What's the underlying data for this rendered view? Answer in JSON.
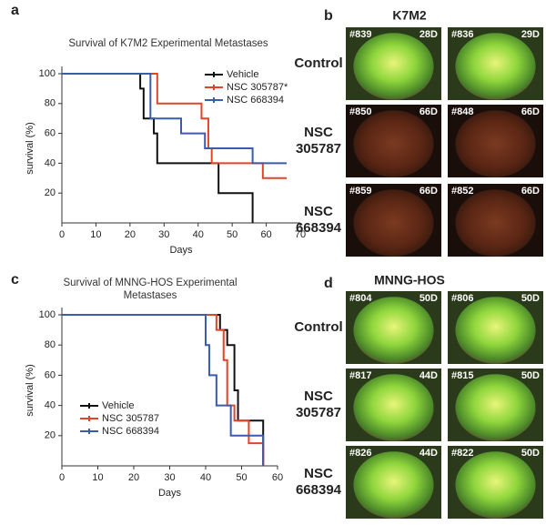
{
  "chart_data": [
    {
      "type": "step",
      "panel_label": "a",
      "title": [
        "Survival of K7M2 Experimental Metastases"
      ],
      "x_label": "Days",
      "y_label": "survival (%)",
      "xlim": [
        0,
        70
      ],
      "xticks": [
        0,
        10,
        20,
        30,
        40,
        50,
        60,
        70
      ],
      "ylim": [
        0,
        100
      ],
      "yticks": [
        20,
        40,
        60,
        80,
        100
      ],
      "series": [
        {
          "name": "Vehicle",
          "color": "#111111",
          "x": [
            0,
            23,
            24,
            27,
            28,
            46,
            56
          ],
          "values": [
            100,
            90,
            70,
            60,
            40,
            20,
            0
          ]
        },
        {
          "name": "NSC 305787*",
          "color": "#e0452a",
          "x": [
            0,
            28,
            41,
            43,
            44,
            59,
            66
          ],
          "values": [
            100,
            80,
            70,
            50,
            40,
            30,
            30
          ]
        },
        {
          "name": "NSC 668394",
          "color": "#3b5bab",
          "x": [
            0,
            26,
            35,
            42,
            56,
            66
          ],
          "values": [
            100,
            70,
            60,
            50,
            40,
            40
          ]
        }
      ]
    },
    {
      "type": "step",
      "panel_label": "c",
      "title": [
        "Survival of MNNG-HOS Experimental",
        "Metastases"
      ],
      "x_label": "Days",
      "y_label": "survival (%)",
      "xlim": [
        0,
        60
      ],
      "xticks": [
        0,
        10,
        20,
        30,
        40,
        50,
        60
      ],
      "ylim": [
        0,
        100
      ],
      "yticks": [
        20,
        40,
        60,
        80,
        100
      ],
      "series": [
        {
          "name": "Vehicle",
          "color": "#111111",
          "x": [
            0,
            44,
            46,
            48,
            49,
            51,
            56
          ],
          "values": [
            100,
            90,
            80,
            50,
            30,
            30,
            0
          ]
        },
        {
          "name": "NSC 305787",
          "color": "#e0452a",
          "x": [
            0,
            43,
            45,
            46,
            48,
            50,
            52,
            56
          ],
          "values": [
            100,
            90,
            70,
            40,
            30,
            30,
            15,
            0
          ]
        },
        {
          "name": "NSC 668394",
          "color": "#3b5bab",
          "x": [
            0,
            40,
            41,
            43,
            47,
            50,
            56
          ],
          "values": [
            100,
            80,
            60,
            40,
            20,
            20,
            0
          ]
        }
      ]
    }
  ],
  "image_panels": [
    {
      "panel_label": "b",
      "title": "K7M2",
      "rows": [
        {
          "label": [
            "Control"
          ],
          "images": [
            {
              "id": "#839",
              "day": "28D"
            },
            {
              "id": "#836",
              "day": "29D"
            }
          ]
        },
        {
          "label": [
            "NSC",
            "305787"
          ],
          "images": [
            {
              "id": "#850",
              "day": "66D"
            },
            {
              "id": "#848",
              "day": "66D"
            }
          ]
        },
        {
          "label": [
            "NSC",
            "668394"
          ],
          "images": [
            {
              "id": "#859",
              "day": "66D"
            },
            {
              "id": "#852",
              "day": "66D"
            }
          ]
        }
      ]
    },
    {
      "panel_label": "d",
      "title": "MNNG-HOS",
      "rows": [
        {
          "label": [
            "Control"
          ],
          "images": [
            {
              "id": "#804",
              "day": "50D"
            },
            {
              "id": "#806",
              "day": "50D"
            }
          ]
        },
        {
          "label": [
            "NSC",
            "305787"
          ],
          "images": [
            {
              "id": "#817",
              "day": "44D"
            },
            {
              "id": "#815",
              "day": "50D"
            }
          ]
        },
        {
          "label": [
            "NSC",
            "668394"
          ],
          "images": [
            {
              "id": "#826",
              "day": "44D"
            },
            {
              "id": "#822",
              "day": "50D"
            }
          ]
        }
      ]
    }
  ]
}
